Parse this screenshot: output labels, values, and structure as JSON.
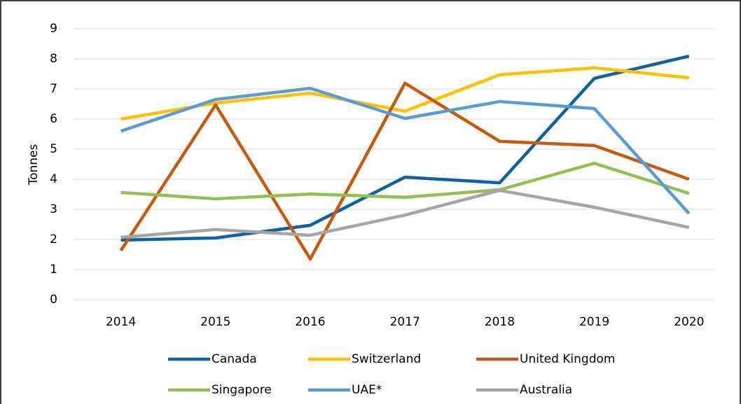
{
  "chart_data": {
    "type": "line",
    "y_label": "Tonnes",
    "categories": [
      "2014",
      "2015",
      "2016",
      "2017",
      "2018",
      "2019",
      "2020"
    ],
    "series": [
      {
        "name": "Canada",
        "color": "#0e62a0",
        "values": [
          1.98,
          2.05,
          2.47,
          4.07,
          3.88,
          7.35,
          8.09
        ]
      },
      {
        "name": "Switzerland",
        "color": "#ffc000",
        "values": [
          6.0,
          6.53,
          6.86,
          6.26,
          7.47,
          7.7,
          7.37
        ]
      },
      {
        "name": "United Kingdom",
        "color": "#c55a11",
        "values": [
          1.63,
          6.47,
          1.35,
          7.19,
          5.26,
          5.12,
          4.0
        ]
      },
      {
        "name": "Singapore",
        "color": "#92c050",
        "values": [
          3.56,
          3.35,
          3.51,
          3.4,
          3.65,
          4.53,
          3.53
        ]
      },
      {
        "name": "UAE*",
        "color": "#5b9bd5",
        "values": [
          5.6,
          6.65,
          7.02,
          6.02,
          6.58,
          6.35,
          2.86
        ]
      },
      {
        "name": "Australia",
        "color": "#a5a5a5",
        "values": [
          2.07,
          2.33,
          2.14,
          2.81,
          3.63,
          3.07,
          2.4
        ]
      }
    ],
    "ylim": [
      0,
      9
    ],
    "yticks": [
      0,
      1,
      2,
      3,
      4,
      5,
      6,
      7,
      8,
      9
    ],
    "grid": true,
    "legend": "bottom"
  }
}
